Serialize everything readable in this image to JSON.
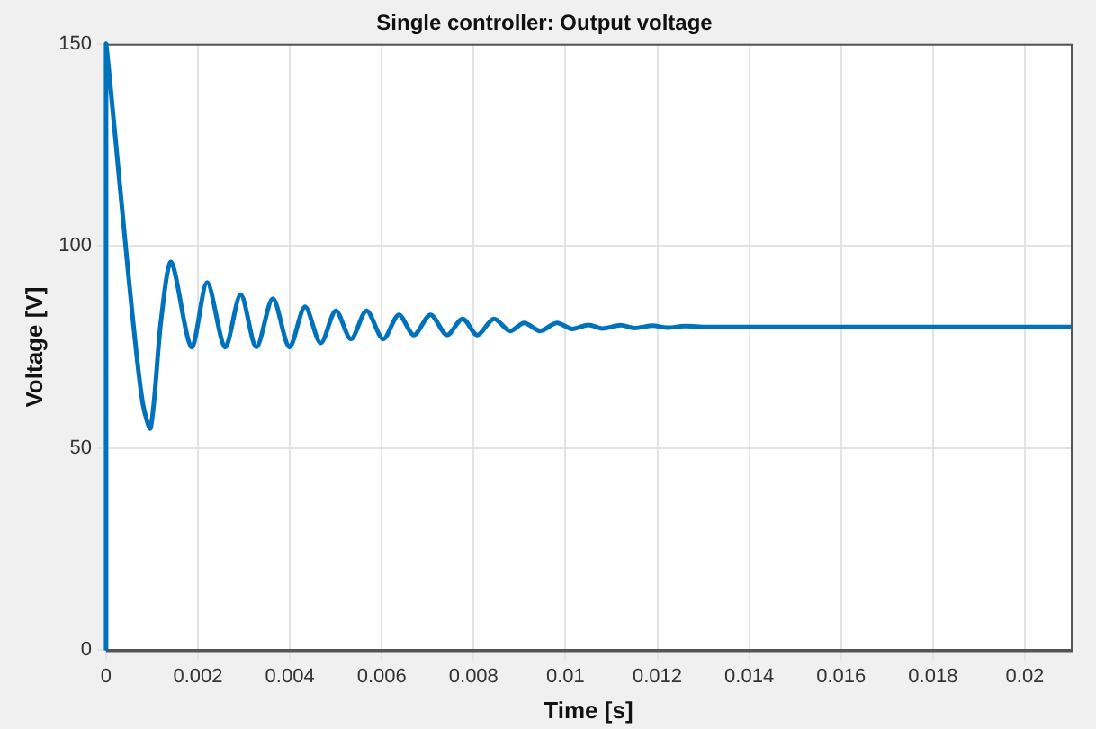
{
  "chart_data": {
    "type": "line",
    "title": "Single controller: Output voltage",
    "xlabel": "Time [s]",
    "ylabel": "Voltage [V]",
    "xlim": [
      0,
      0.021
    ],
    "xticks": [
      0,
      0.002,
      0.004,
      0.006,
      0.008,
      0.01,
      0.012,
      0.014,
      0.016,
      0.018,
      0.02
    ],
    "ylim": [
      0,
      150
    ],
    "yticks": [
      0,
      50,
      100,
      150
    ],
    "grid": true,
    "legend": false,
    "marker": "none",
    "line_style": "solid",
    "series": [
      {
        "color": "#0072bd",
        "x": [
          0,
          0,
          0.0002,
          0.0004,
          0.0006,
          0.0008,
          0.00097,
          0.0012,
          0.00142,
          0.00186,
          0.0022,
          0.00259,
          0.00293,
          0.00327,
          0.00363,
          0.00399,
          0.00433,
          0.00467,
          0.005,
          0.00533,
          0.00567,
          0.00603,
          0.00637,
          0.0067,
          0.00706,
          0.00742,
          0.00776,
          0.00808,
          0.00844,
          0.00879,
          0.0091,
          0.00945,
          0.00981,
          0.01014,
          0.0105,
          0.0108,
          0.0112,
          0.0115,
          0.0119,
          0.0122,
          0.0126,
          0.013,
          0.014,
          0.016,
          0.018,
          0.021
        ],
        "values": [
          0,
          150,
          127,
          103,
          80,
          61,
          55,
          82,
          96,
          75,
          91,
          75,
          88,
          75,
          87,
          75,
          85,
          76,
          84,
          77,
          84,
          77,
          83,
          78,
          83,
          78,
          82,
          78,
          82,
          79,
          81,
          79,
          81,
          79.5,
          80.5,
          79.6,
          80.4,
          79.7,
          80.3,
          79.8,
          80.2,
          80,
          80,
          80,
          80,
          80
        ]
      }
    ]
  }
}
